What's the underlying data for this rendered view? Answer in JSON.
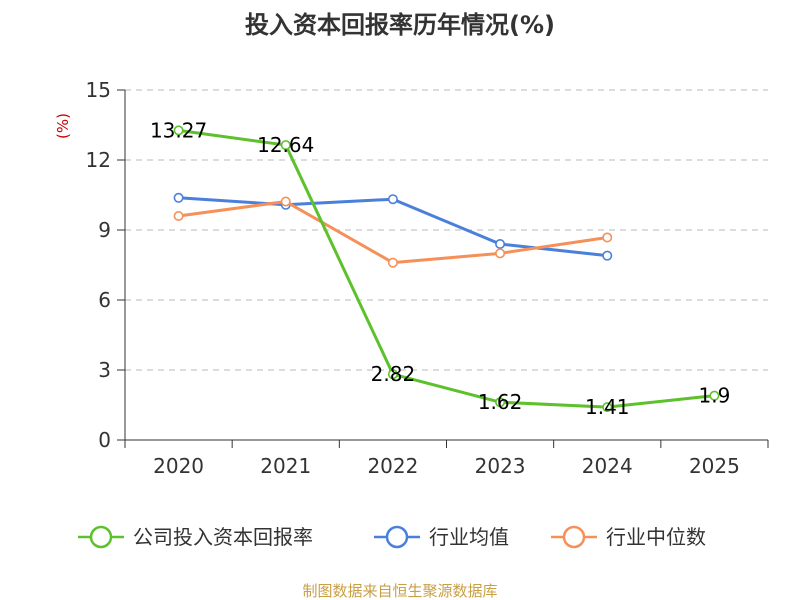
{
  "chart_data": {
    "type": "line",
    "title": "投入资本回报率历年情况(%)",
    "ylabel": "(%)",
    "xlabel": "",
    "categories": [
      "2020",
      "2021",
      "2022",
      "2023",
      "2024",
      "2025"
    ],
    "ylim": [
      0,
      15
    ],
    "yticks": [
      0,
      3,
      6,
      9,
      12,
      15
    ],
    "grid": true,
    "legend_position": "bottom",
    "series": [
      {
        "name": "公司投入资本回报率",
        "color": "#5cc12a",
        "values": [
          13.27,
          12.64,
          2.82,
          1.62,
          1.41,
          1.9
        ],
        "labels": [
          "13.27",
          "12.64",
          "2.82",
          "1.62",
          "1.41",
          "1.9"
        ]
      },
      {
        "name": "行业均值",
        "color": "#4a7fdb",
        "values": [
          10.38,
          10.08,
          10.32,
          8.4,
          7.9,
          null
        ]
      },
      {
        "name": "行业中位数",
        "color": "#f59058",
        "values": [
          9.6,
          10.22,
          7.6,
          8.0,
          8.68,
          null
        ]
      }
    ]
  },
  "footer": {
    "source": "制图数据来自恒生聚源数据库"
  }
}
